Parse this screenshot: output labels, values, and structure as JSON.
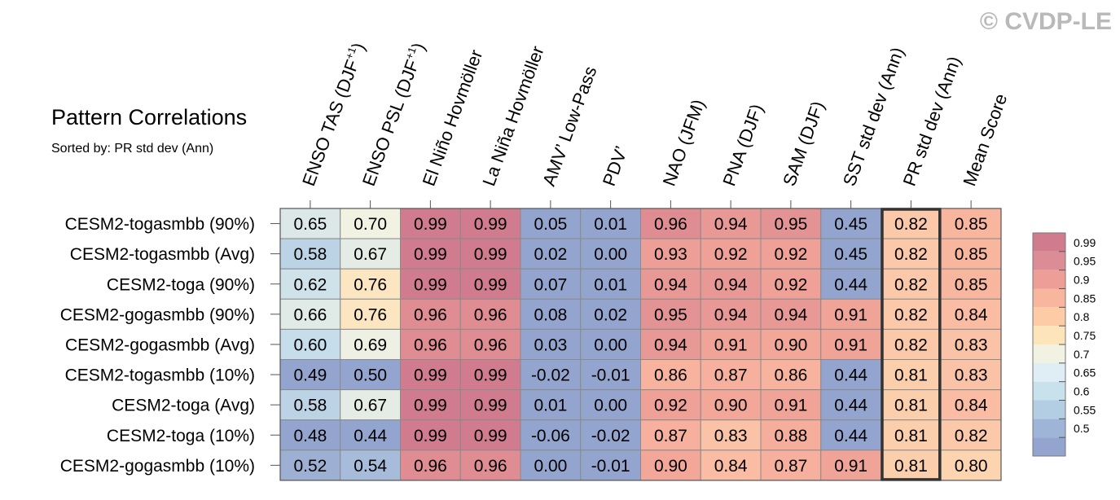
{
  "watermark": "© CVDP-LE",
  "chart_data": {
    "type": "heatmap",
    "title": "Pattern Correlations",
    "subtitle": "Sorted by: PR std dev (Ann)",
    "columns": [
      {
        "base": "ENSO TAS (DJF",
        "sup": "+1",
        "tail": ")"
      },
      {
        "base": "ENSO PSL (DJF",
        "sup": "+1",
        "tail": ")"
      },
      {
        "base": "El Niño Hovmöller",
        "sup": "",
        "tail": ""
      },
      {
        "base": "La Niña Hovmöller",
        "sup": "",
        "tail": ""
      },
      {
        "base": "AMV’ Low-Pass",
        "sup": "",
        "tail": ""
      },
      {
        "base": "PDV’",
        "sup": "",
        "tail": ""
      },
      {
        "base": "NAO (JFM)",
        "sup": "",
        "tail": ""
      },
      {
        "base": "PNA (DJF)",
        "sup": "",
        "tail": ""
      },
      {
        "base": "SAM (DJF)",
        "sup": "",
        "tail": ""
      },
      {
        "base": "SST std dev (Ann)",
        "sup": "",
        "tail": ""
      },
      {
        "base": "PR std dev (Ann)",
        "sup": "",
        "tail": ""
      },
      {
        "base": "Mean Score",
        "sup": "",
        "tail": ""
      }
    ],
    "rows": [
      "CESM2-togasmbb (90%)",
      "CESM2-togasmbb (Avg)",
      "CESM2-toga (90%)",
      "CESM2-gogasmbb (90%)",
      "CESM2-gogasmbb (Avg)",
      "CESM2-togasmbb (10%)",
      "CESM2-toga (Avg)",
      "CESM2-toga (10%)",
      "CESM2-gogasmbb (10%)"
    ],
    "values": [
      [
        "0.65",
        "0.70",
        "0.99",
        "0.99",
        "0.05",
        "0.01",
        "0.96",
        "0.94",
        "0.95",
        "0.45",
        "0.82",
        "0.85"
      ],
      [
        "0.58",
        "0.67",
        "0.99",
        "0.99",
        "0.02",
        "0.00",
        "0.93",
        "0.92",
        "0.92",
        "0.45",
        "0.82",
        "0.85"
      ],
      [
        "0.62",
        "0.76",
        "0.99",
        "0.99",
        "0.07",
        "0.01",
        "0.94",
        "0.94",
        "0.92",
        "0.44",
        "0.82",
        "0.85"
      ],
      [
        "0.66",
        "0.76",
        "0.96",
        "0.96",
        "0.08",
        "0.02",
        "0.95",
        "0.94",
        "0.94",
        "0.91",
        "0.82",
        "0.84"
      ],
      [
        "0.60",
        "0.69",
        "0.96",
        "0.96",
        "0.03",
        "0.00",
        "0.94",
        "0.91",
        "0.90",
        "0.91",
        "0.82",
        "0.83"
      ],
      [
        "0.49",
        "0.50",
        "0.99",
        "0.99",
        "-0.02",
        "-0.01",
        "0.86",
        "0.87",
        "0.86",
        "0.44",
        "0.81",
        "0.83"
      ],
      [
        "0.58",
        "0.67",
        "0.99",
        "0.99",
        "0.01",
        "0.00",
        "0.92",
        "0.90",
        "0.91",
        "0.44",
        "0.81",
        "0.84"
      ],
      [
        "0.48",
        "0.44",
        "0.99",
        "0.99",
        "-0.06",
        "-0.02",
        "0.87",
        "0.83",
        "0.88",
        "0.44",
        "0.81",
        "0.82"
      ],
      [
        "0.52",
        "0.54",
        "0.96",
        "0.96",
        "0.00",
        "-0.01",
        "0.90",
        "0.84",
        "0.87",
        "0.91",
        "0.81",
        "0.80"
      ]
    ],
    "highlight_column": "PR std dev (Ann)",
    "colorbar": {
      "labels": [
        "0.99",
        "0.95",
        "0.9",
        "0.85",
        "0.8",
        "0.75",
        "0.7",
        "0.65",
        "0.6",
        "0.55",
        "0.5"
      ],
      "colors": [
        "#d07c8e",
        "#db8c94",
        "#ed9e96",
        "#f9b69f",
        "#fdcba6",
        "#fde5b9",
        "#f2f2e3",
        "#dfeef4",
        "#c9e1ec",
        "#b3cde3",
        "#9fb5d8",
        "#93a5ce"
      ]
    }
  }
}
